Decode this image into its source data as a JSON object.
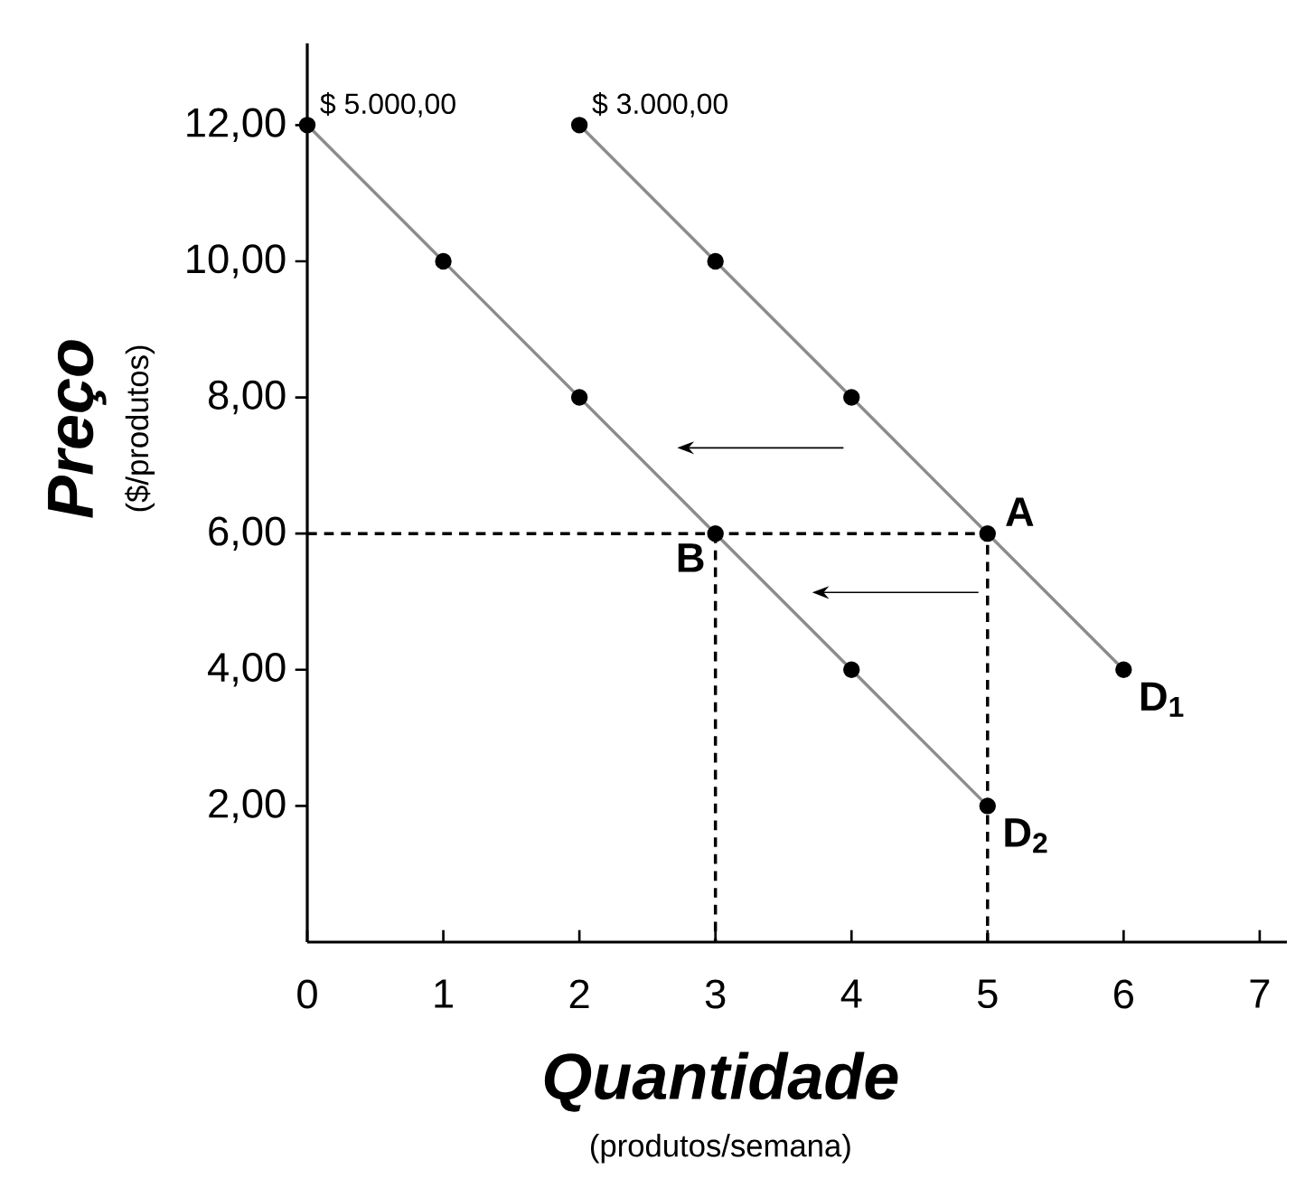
{
  "chart_data": {
    "type": "line",
    "xlabel": "Quantidade",
    "ylabel": "Preço",
    "xlim": [
      0,
      7.2
    ],
    "ylim": [
      0,
      13.2
    ],
    "xticks": [
      0,
      1,
      2,
      3,
      4,
      5,
      6,
      7
    ],
    "yticks": [
      {
        "value": 2,
        "label": "2,00"
      },
      {
        "value": 4,
        "label": "4,00"
      },
      {
        "value": 6,
        "label": "6,00"
      },
      {
        "value": 8,
        "label": "8,00"
      },
      {
        "value": 10,
        "label": "10,00"
      },
      {
        "value": 12,
        "label": "12,00"
      }
    ],
    "grid": false,
    "series": [
      {
        "name": "D$_{1}$",
        "color": "#8c8c8c",
        "marker": "circle",
        "x": [
          2,
          3,
          4,
          5,
          6
        ],
        "values": [
          12,
          10,
          8,
          6,
          4
        ]
      },
      {
        "name": "D$_{2}$",
        "color": "#8c8c8c",
        "marker": "circle",
        "x": [
          0,
          1,
          2,
          3,
          4,
          5
        ],
        "values": [
          12,
          10,
          8,
          6,
          4,
          2
        ]
      },
      {
        "color": "#000000",
        "line_style": "dashed",
        "x": [
          0,
          5,
          5
        ],
        "values": [
          6,
          6,
          0
        ]
      },
      {
        "color": "#000000",
        "line_style": "dashed",
        "x": [
          3,
          3
        ],
        "values": [
          6,
          0
        ]
      }
    ],
    "annotations": [
      {
        "text": "$ 5.000,00",
        "x": 0,
        "y": 12
      },
      {
        "text": "$ 3.000,00",
        "x": 2,
        "y": 12
      },
      {
        "text": "A",
        "x": 5,
        "y": 6
      },
      {
        "text": "B",
        "x": 3,
        "y": 6
      },
      "($/produtos)",
      "(produtos/semana)"
    ]
  }
}
